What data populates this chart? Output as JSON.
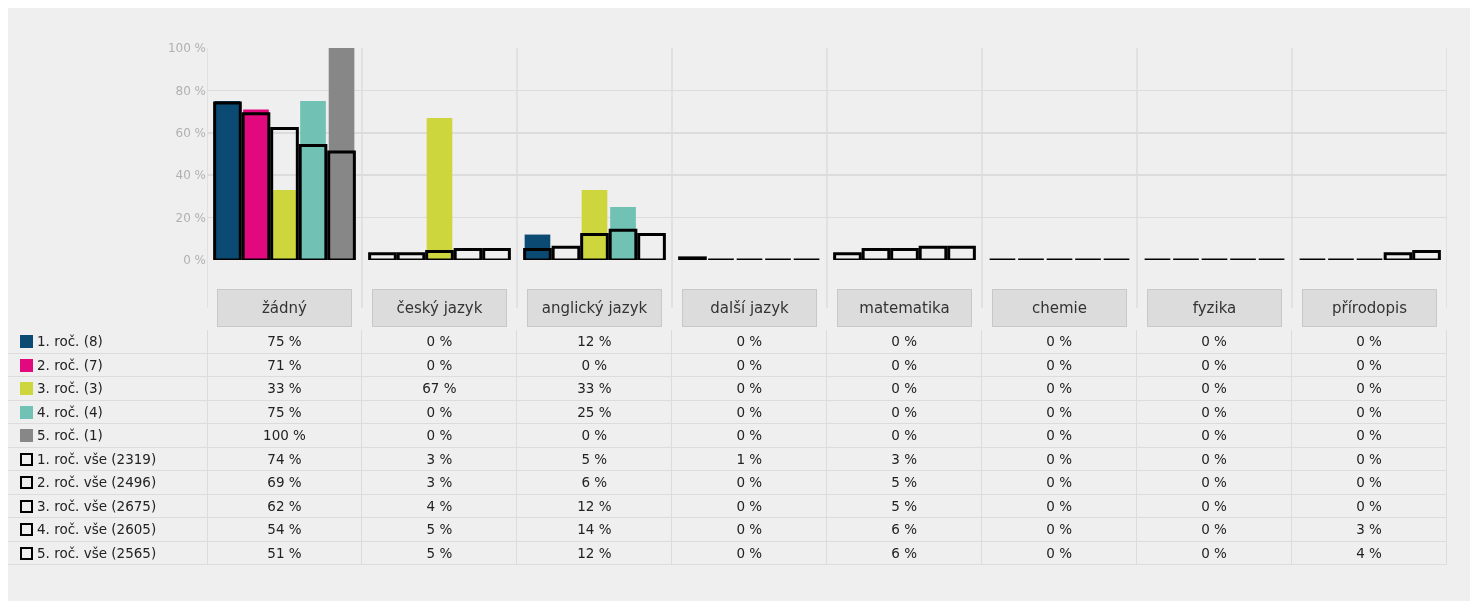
{
  "chart_data": {
    "type": "bar",
    "categories": [
      "žádný",
      "český jazyk",
      "anglický jazyk",
      "další jazyk",
      "matematika",
      "chemie",
      "fyzika",
      "přírodopis"
    ],
    "series": [
      {
        "name": "1. roč. (8)",
        "color": "#0a4a73",
        "values": [
          75,
          0,
          12,
          0,
          0,
          0,
          0,
          0
        ],
        "value_labels": [
          "75 %",
          "0 %",
          "12 %",
          "0 %",
          "0 %",
          "0 %",
          "0 %",
          "0 %"
        ]
      },
      {
        "name": "2. roč. (7)",
        "color": "#e2097f",
        "values": [
          71,
          0,
          0,
          0,
          0,
          0,
          0,
          0
        ],
        "value_labels": [
          "71 %",
          "0 %",
          "0 %",
          "0 %",
          "0 %",
          "0 %",
          "0 %",
          "0 %"
        ]
      },
      {
        "name": "3. roč. (3)",
        "color": "#cdd63c",
        "values": [
          33,
          67,
          33,
          0,
          0,
          0,
          0,
          0
        ],
        "value_labels": [
          "33 %",
          "67 %",
          "33 %",
          "0 %",
          "0 %",
          "0 %",
          "0 %",
          "0 %"
        ]
      },
      {
        "name": "4. roč. (4)",
        "color": "#71c1b4",
        "values": [
          75,
          0,
          25,
          0,
          0,
          0,
          0,
          0
        ],
        "value_labels": [
          "75 %",
          "0 %",
          "25 %",
          "0 %",
          "0 %",
          "0 %",
          "0 %",
          "0 %"
        ]
      },
      {
        "name": "5. roč. (1)",
        "color": "#878787",
        "values": [
          100,
          0,
          0,
          0,
          0,
          0,
          0,
          0
        ],
        "value_labels": [
          "100 %",
          "0 %",
          "0 %",
          "0 %",
          "0 %",
          "0 %",
          "0 %",
          "0 %"
        ]
      },
      {
        "name": "1. roč. vše (2319)",
        "color": "#000000",
        "values": [
          74,
          3,
          5,
          1,
          3,
          0,
          0,
          0
        ],
        "value_labels": [
          "74 %",
          "3 %",
          "5 %",
          "1 %",
          "3 %",
          "0 %",
          "0 %",
          "0 %"
        ]
      },
      {
        "name": "2. roč. vše (2496)",
        "color": "#000000",
        "values": [
          69,
          3,
          6,
          0,
          5,
          0,
          0,
          0
        ],
        "value_labels": [
          "69 %",
          "3 %",
          "6 %",
          "0 %",
          "5 %",
          "0 %",
          "0 %",
          "0 %"
        ]
      },
      {
        "name": "3. roč. vše (2675)",
        "color": "#000000",
        "values": [
          62,
          4,
          12,
          0,
          5,
          0,
          0,
          0
        ],
        "value_labels": [
          "62 %",
          "4 %",
          "12 %",
          "0 %",
          "5 %",
          "0 %",
          "0 %",
          "0 %"
        ]
      },
      {
        "name": "4. roč. vše (2605)",
        "color": "#000000",
        "values": [
          54,
          5,
          14,
          0,
          6,
          0,
          0,
          3
        ],
        "value_labels": [
          "54 %",
          "5 %",
          "14 %",
          "0 %",
          "6 %",
          "0 %",
          "0 %",
          "3 %"
        ]
      },
      {
        "name": "5. roč. vše (2565)",
        "color": "#000000",
        "values": [
          51,
          5,
          12,
          0,
          6,
          0,
          0,
          4
        ],
        "value_labels": [
          "51 %",
          "5 %",
          "12 %",
          "0 %",
          "6 %",
          "0 %",
          "0 %",
          "4 %"
        ]
      }
    ],
    "ylim": [
      0,
      100
    ],
    "yticks": [
      {
        "value": 0,
        "label": "0 %"
      },
      {
        "value": 20,
        "label": "20 %"
      },
      {
        "value": 40,
        "label": "40 %"
      },
      {
        "value": 60,
        "label": "60 %"
      },
      {
        "value": 80,
        "label": "80 %"
      },
      {
        "value": 100,
        "label": "100 %"
      }
    ],
    "grid": true,
    "legend": "bottom",
    "data_labels": true
  }
}
